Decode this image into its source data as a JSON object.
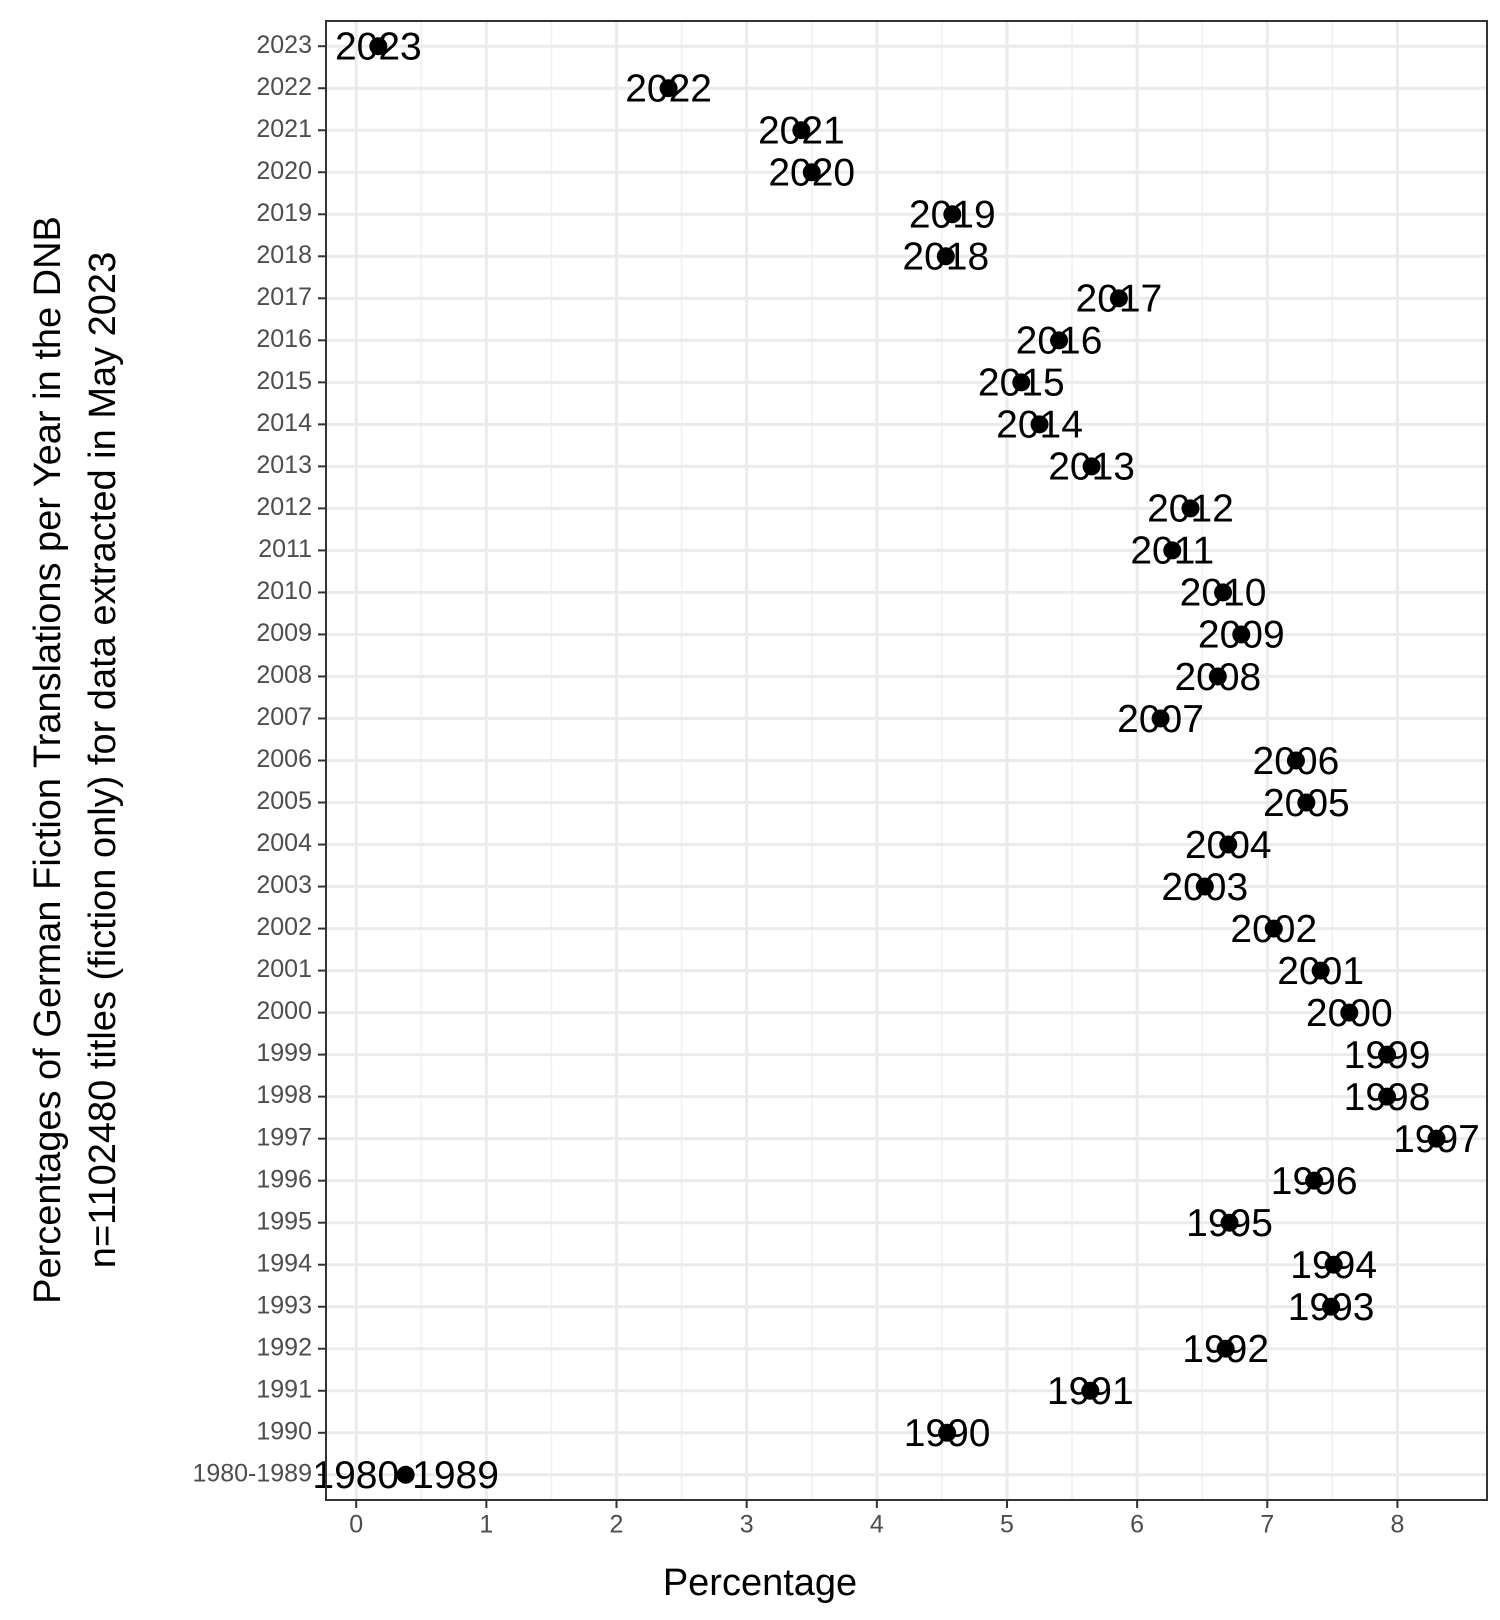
{
  "chart_data": {
    "type": "dot",
    "xlabel": "Percentage",
    "ylabel": [
      "Percentages of German Fiction Translations per Year in the DNB",
      "n=1102480 titles (fiction only) for data extracted in May 2023"
    ],
    "categories": [
      "2023",
      "2022",
      "2021",
      "2020",
      "2019",
      "2018",
      "2017",
      "2016",
      "2015",
      "2014",
      "2013",
      "2012",
      "2011",
      "2010",
      "2009",
      "2008",
      "2007",
      "2006",
      "2005",
      "2004",
      "2003",
      "2002",
      "2001",
      "2000",
      "1999",
      "1998",
      "1997",
      "1996",
      "1995",
      "1994",
      "1993",
      "1992",
      "1991",
      "1990",
      "1980-1989"
    ],
    "values": [
      0.17,
      2.4,
      3.42,
      3.5,
      4.58,
      4.53,
      5.86,
      5.4,
      5.11,
      5.25,
      5.65,
      6.41,
      6.27,
      6.66,
      6.8,
      6.62,
      6.18,
      7.22,
      7.3,
      6.7,
      6.52,
      7.05,
      7.41,
      7.63,
      7.92,
      7.92,
      8.3,
      7.36,
      6.71,
      7.51,
      7.49,
      6.68,
      5.64,
      4.54,
      0.38
    ],
    "color": "#000000",
    "xlim": [
      -0.232,
      8.688
    ],
    "xticks": [
      0,
      1,
      2,
      3,
      4,
      5,
      6,
      7,
      8
    ],
    "grid": true
  }
}
